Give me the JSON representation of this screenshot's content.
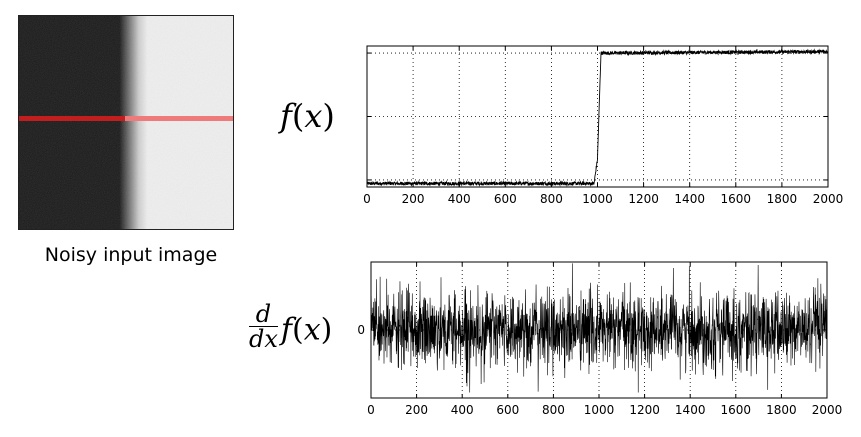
{
  "image_panel": {
    "caption": "Noisy input image",
    "colors": {
      "dark": "#141414",
      "light": "#f1f1f1",
      "profile_line_dark": "#c21e1e",
      "profile_line_light": "#ef7a7a"
    }
  },
  "labels": {
    "top_plot": {
      "func": "f",
      "open": "(",
      "var": "x",
      "close": ")"
    },
    "bottom_plot": {
      "frac_num": "d",
      "frac_den": "dx",
      "func": "f",
      "open": "(",
      "var": "x",
      "close": ")"
    }
  },
  "chart_data": [
    {
      "type": "line",
      "x_range": [
        0,
        2000
      ],
      "x_ticks": [
        0,
        200,
        400,
        600,
        800,
        1000,
        1200,
        1400,
        1600,
        1800,
        2000
      ],
      "ylim": [
        -1,
        1
      ],
      "y_ticks_unlabeled": [
        -0.9,
        0,
        0.9
      ],
      "grid": true,
      "series": [
        {
          "points": [
            [
              0,
              -0.95
            ],
            [
              985,
              -0.95
            ],
            [
              1000,
              -0.6
            ],
            [
              1015,
              0.9
            ],
            [
              2000,
              0.92
            ]
          ],
          "noise_amplitude": 0.05,
          "color": "#000000"
        }
      ],
      "xlabel": "",
      "ylabel": "",
      "title": ""
    },
    {
      "type": "line",
      "x_range": [
        0,
        2000
      ],
      "x_ticks": [
        0,
        200,
        400,
        600,
        800,
        1000,
        1200,
        1400,
        1600,
        1800,
        2000
      ],
      "y_ticks": [
        {
          "value": 0,
          "label": "0"
        }
      ],
      "ylim": [
        -1,
        1
      ],
      "grid": true,
      "series": [
        {
          "mean": 0,
          "noise_amplitude": 0.85,
          "color": "#000000"
        }
      ],
      "xlabel": "",
      "ylabel": "",
      "title": ""
    }
  ]
}
